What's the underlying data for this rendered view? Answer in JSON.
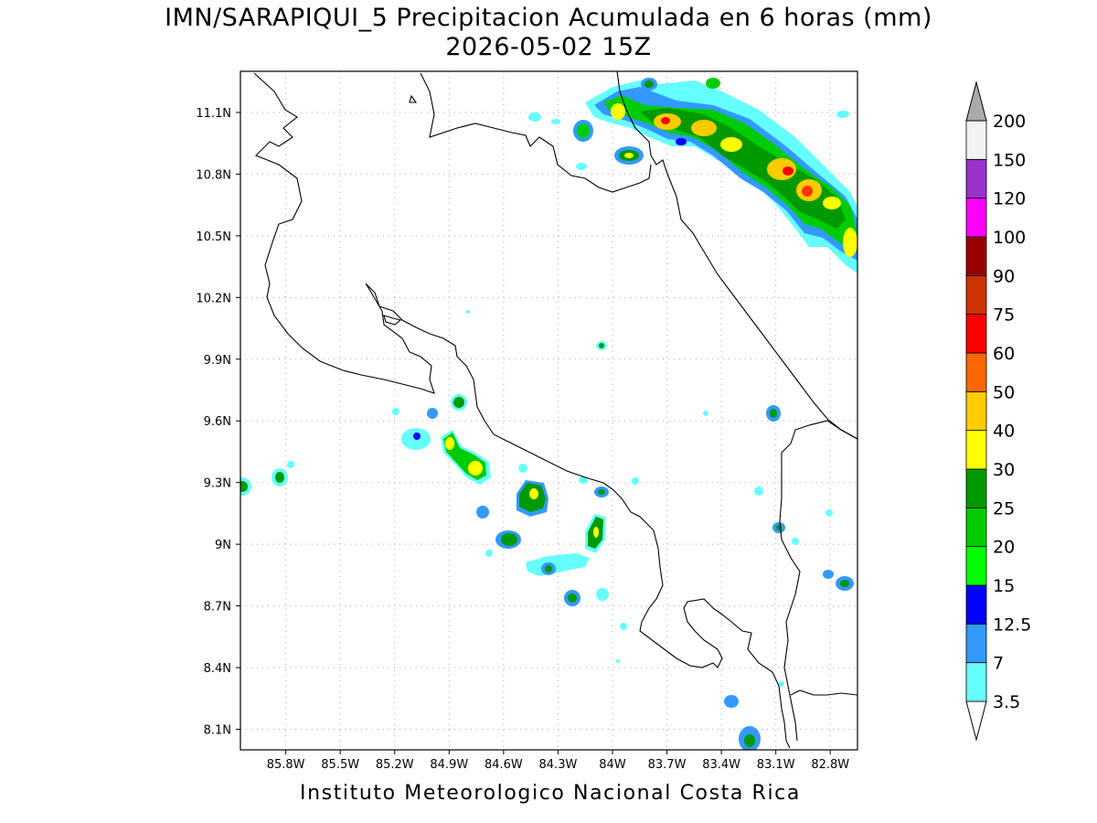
{
  "header": {
    "title_line1": "IMN/SARAPIQUI_5 Precipitacion Acumulada en 6 horas (mm)",
    "title_line2": "2026-05-02 15Z"
  },
  "footer": {
    "text": "Instituto Meteorologico Nacional Costa Rica"
  },
  "map": {
    "lon_range": [
      -86.05,
      -82.65
    ],
    "lat_range": [
      8.0,
      11.3
    ],
    "x_ticks": [
      {
        "lon": -85.8,
        "label": "85.8W"
      },
      {
        "lon": -85.5,
        "label": "85.5W"
      },
      {
        "lon": -85.2,
        "label": "85.2W"
      },
      {
        "lon": -84.9,
        "label": "84.9W"
      },
      {
        "lon": -84.6,
        "label": "84.6W"
      },
      {
        "lon": -84.3,
        "label": "84.3W"
      },
      {
        "lon": -84.0,
        "label": "84W"
      },
      {
        "lon": -83.7,
        "label": "83.7W"
      },
      {
        "lon": -83.4,
        "label": "83.4W"
      },
      {
        "lon": -83.1,
        "label": "83.1W"
      },
      {
        "lon": -82.8,
        "label": "82.8W"
      }
    ],
    "y_ticks": [
      {
        "lat": 11.1,
        "label": "11.1N"
      },
      {
        "lat": 10.8,
        "label": "10.8N"
      },
      {
        "lat": 10.5,
        "label": "10.5N"
      },
      {
        "lat": 10.2,
        "label": "10.2N"
      },
      {
        "lat": 9.9,
        "label": "9.9N"
      },
      {
        "lat": 9.6,
        "label": "9.6N"
      },
      {
        "lat": 9.3,
        "label": "9.3N"
      },
      {
        "lat": 9.0,
        "label": "9N"
      },
      {
        "lat": 8.7,
        "label": "8.7N"
      },
      {
        "lat": 8.4,
        "label": "8.4N"
      },
      {
        "lat": 8.1,
        "label": "8.1N"
      }
    ],
    "grid": true
  },
  "colorbar": {
    "levels": [
      {
        "label": "3.5",
        "color": "#66ffff"
      },
      {
        "label": "7",
        "color": "#3399ff"
      },
      {
        "label": "12.5",
        "color": "#0000ff"
      },
      {
        "label": "15",
        "color": "#00ff00"
      },
      {
        "label": "20",
        "color": "#00cc00"
      },
      {
        "label": "25",
        "color": "#009900"
      },
      {
        "label": "30",
        "color": "#ffff00"
      },
      {
        "label": "40",
        "color": "#ffcc00"
      },
      {
        "label": "50",
        "color": "#ff6600"
      },
      {
        "label": "60",
        "color": "#ff0000"
      },
      {
        "label": "75",
        "color": "#cc3300"
      },
      {
        "label": "90",
        "color": "#990000"
      },
      {
        "label": "100",
        "color": "#ff00ff"
      },
      {
        "label": "120",
        "color": "#9933cc"
      },
      {
        "label": "150",
        "color": "#f2f2f2"
      },
      {
        "label": "200",
        "color": "#aaaaaa"
      }
    ],
    "low_end_color": "#ffffff",
    "high_end_color": "#aaaaaa"
  }
}
